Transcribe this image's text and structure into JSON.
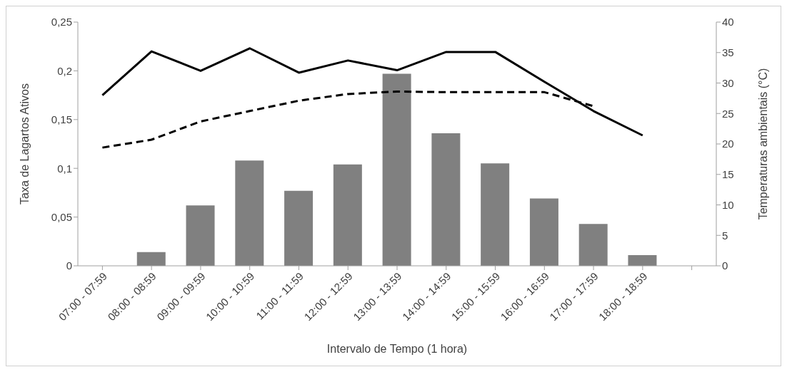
{
  "chart_data": {
    "type": "bar",
    "xlabel": "Intervalo de Tempo (1 hora)",
    "ylabel": "Taxa de Lagartos Ativos",
    "y2label": "Temperaturas ambientais (°C)",
    "categories": [
      "07:00 - 07:59",
      "08:00 - 08:59",
      "09:00 - 09:59",
      "10:00 - 10:59",
      "11:00 - 11:59",
      "12:00 - 12:59",
      "13:00 - 13:59",
      "14:00 - 14:59",
      "15:00 - 15:59",
      "16:00 - 16:59",
      "17:00 - 17:59",
      "18:00 - 18:59",
      null
    ],
    "series": [
      {
        "color": "#808080",
        "values": [
          0,
          0.014,
          0.062,
          0.108,
          0.077,
          0.104,
          0.197,
          0.136,
          0.105,
          0.069,
          0.043,
          0.011,
          null
        ]
      },
      {
        "type": "line",
        "axis": "y2",
        "color": "#000000",
        "line_style": "solid",
        "values": [
          28.0,
          35.2,
          32.0,
          35.7,
          31.7,
          33.7,
          32.1,
          35.1,
          35.1,
          30.2,
          25.4,
          21.4,
          null
        ]
      },
      {
        "type": "line",
        "axis": "y2",
        "color": "#000000",
        "line_style": "dashed",
        "values": [
          19.4,
          20.7,
          23.7,
          25.4,
          27.1,
          28.2,
          28.6,
          28.5,
          28.5,
          28.5,
          26.2,
          null,
          null
        ]
      }
    ],
    "ylim": [
      0,
      0.25
    ],
    "yticks": [
      0,
      {
        "value": 0.05,
        "label": "0,05"
      },
      {
        "value": 0.1,
        "label": "0,1"
      },
      {
        "value": 0.15,
        "label": "0,15"
      },
      {
        "value": 0.2,
        "label": "0,2"
      },
      {
        "value": 0.25,
        "label": "0,25"
      }
    ],
    "y2lim": [
      0,
      40
    ],
    "y2ticks": [
      0,
      5,
      10,
      15,
      20,
      25,
      30,
      35,
      40
    ],
    "grid": false,
    "legend": false,
    "marker": "none"
  }
}
